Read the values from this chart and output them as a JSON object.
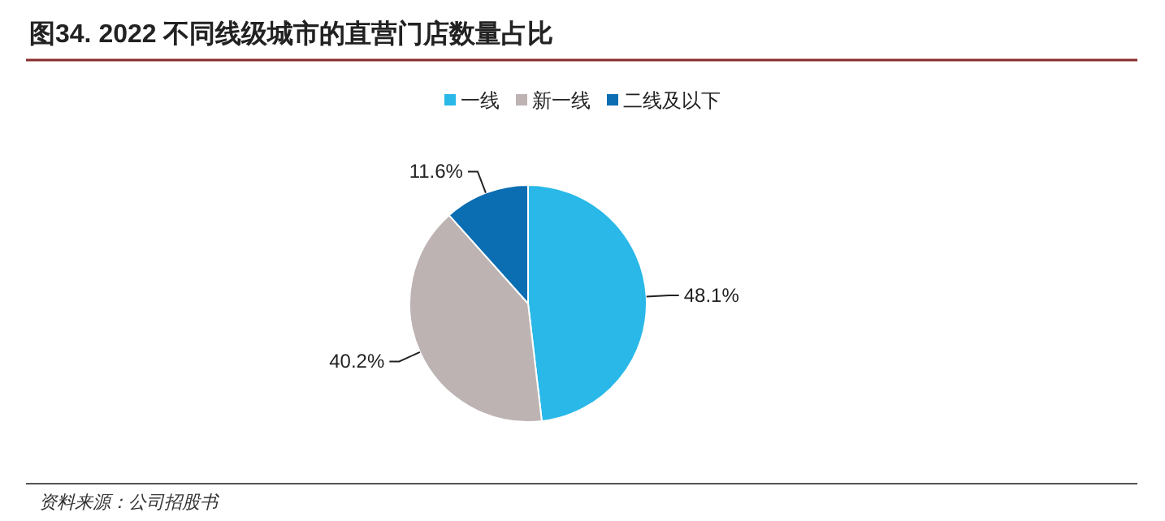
{
  "chart_data": {
    "type": "pie",
    "title": "图34. 2022 不同线级城市的直营门店数量占比",
    "categories": [
      "一线",
      "新一线",
      "二线及以下"
    ],
    "values": [
      48.1,
      40.2,
      11.6
    ],
    "value_labels": [
      "48.1%",
      "40.2%",
      "11.6%"
    ],
    "colors": [
      "#29b8e8",
      "#bdb3b2",
      "#0b6db2"
    ],
    "legend": "top",
    "annotations": [
      "资料来源：公司招股书"
    ]
  }
}
